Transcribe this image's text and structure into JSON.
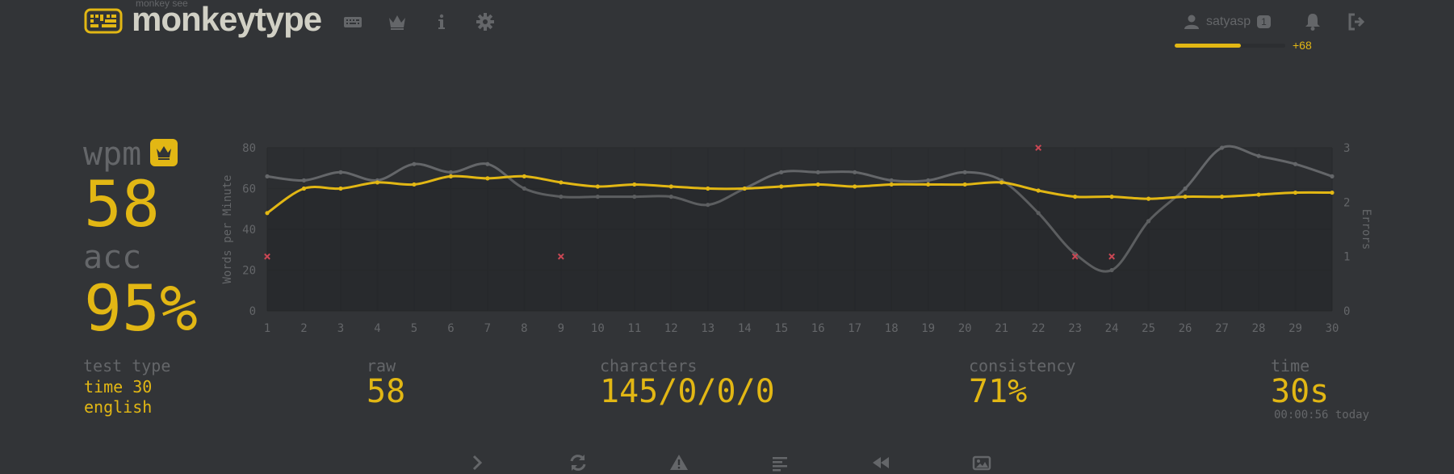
{
  "header": {
    "brand_top": "monkey see",
    "brand": "monkeytype",
    "nav": [
      "keyboard-icon",
      "crown-icon",
      "info-icon",
      "gear-icon"
    ],
    "user": {
      "name": "satyasp",
      "level": "1",
      "xp_fraction": 0.6,
      "xp_gain": "+68"
    }
  },
  "result": {
    "wpm_label": "wpm",
    "wpm": "58",
    "acc_label": "acc",
    "acc": "95%"
  },
  "stats": {
    "test_type_label": "test type",
    "test_type_line1": "time 30",
    "test_type_line2": "english",
    "raw_label": "raw",
    "raw": "58",
    "characters_label": "characters",
    "characters": "145/0/0/0",
    "consistency_label": "consistency",
    "consistency": "71%",
    "time_label": "time",
    "time": "30s",
    "time_sub": "00:00:56 today"
  },
  "bottom_buttons": [
    "next-test-icon",
    "restart-icon",
    "report-icon",
    "word-history-icon",
    "replay-icon",
    "screenshot-icon"
  ],
  "colors": {
    "bg": "#323437",
    "main": "#e2b714",
    "sub": "#646669",
    "text": "#d1d0c5",
    "error": "#ca4754",
    "raw": "#646669"
  },
  "chart_data": {
    "type": "line",
    "x": [
      1,
      2,
      3,
      4,
      5,
      6,
      7,
      8,
      9,
      10,
      11,
      12,
      13,
      14,
      15,
      16,
      17,
      18,
      19,
      20,
      21,
      22,
      23,
      24,
      25,
      26,
      27,
      28,
      29,
      30
    ],
    "ylabel": "Words per Minute",
    "y2label": "Errors",
    "ylim": [
      0,
      80
    ],
    "y2lim": [
      0,
      3
    ],
    "yticks": [
      "0",
      "20",
      "40",
      "60",
      "80"
    ],
    "y2ticks": [
      "0",
      "1",
      "2",
      "3"
    ],
    "series": [
      {
        "key": "wpm",
        "color": "#e2b714",
        "values": [
          48,
          60,
          60,
          63,
          62,
          66,
          65,
          66,
          63,
          61,
          62,
          61,
          60,
          60,
          61,
          62,
          61,
          62,
          62,
          62,
          63,
          59,
          56,
          56,
          55,
          56,
          56,
          57,
          58,
          58
        ]
      },
      {
        "key": "raw",
        "color": "#646669",
        "values": [
          66,
          64,
          68,
          64,
          72,
          68,
          72,
          60,
          56,
          56,
          56,
          56,
          52,
          60,
          68,
          68,
          68,
          64,
          64,
          68,
          64,
          48,
          28,
          20,
          44,
          60,
          80,
          76,
          72,
          66
        ]
      }
    ],
    "errors": [
      {
        "x": 1,
        "y": 1
      },
      {
        "x": 9,
        "y": 1
      },
      {
        "x": 22,
        "y": 3
      },
      {
        "x": 23,
        "y": 1
      },
      {
        "x": 24,
        "y": 1
      }
    ],
    "grid": true
  }
}
